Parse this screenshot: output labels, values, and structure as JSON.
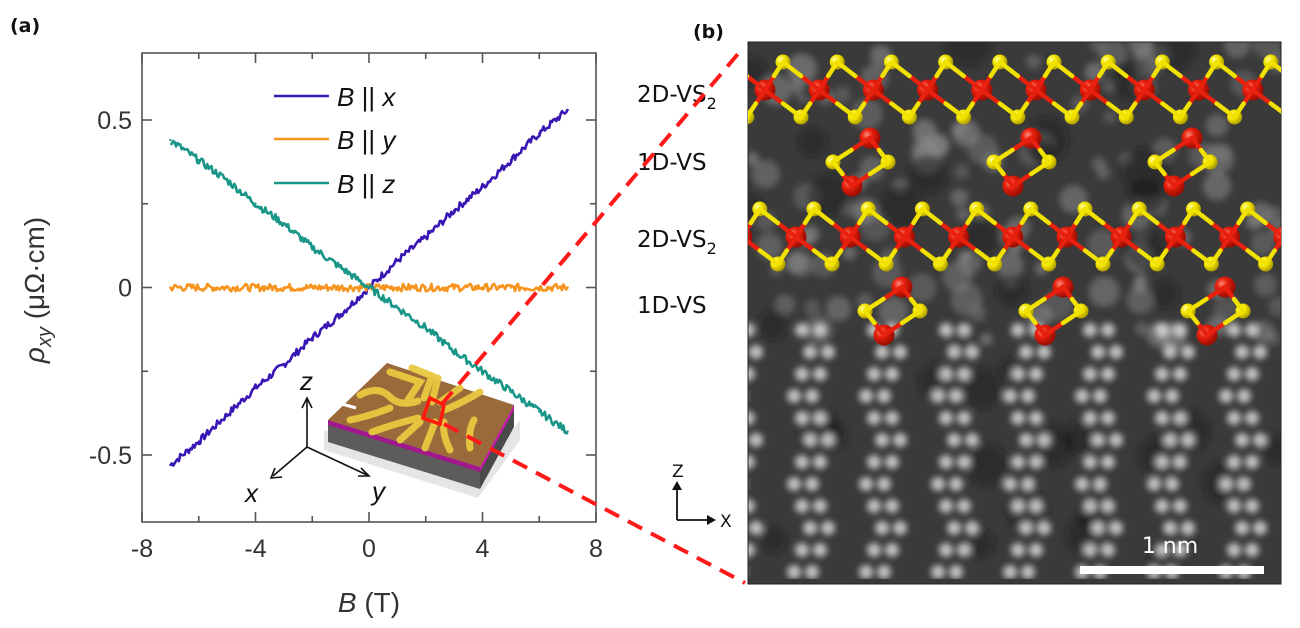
{
  "figure": {
    "panel_a_label": "(a)",
    "panel_b_label": "(b)"
  },
  "chart_data": {
    "type": "line",
    "title": "",
    "xlabel_var": "B",
    "xlabel_unit": " (T)",
    "ylabel_var": "ρ",
    "ylabel_sub": "xy",
    "ylabel_unit": " (μΩ·cm)",
    "xlim": [
      -8,
      8
    ],
    "ylim": [
      -0.7,
      0.7
    ],
    "x_ticks": [
      -8,
      -4,
      0,
      4,
      8
    ],
    "x_tick_labels": [
      "-8",
      "-4",
      "0",
      "4",
      "8"
    ],
    "x_minor_ticks": [
      -6,
      -2,
      2,
      6
    ],
    "y_ticks": [
      0.5,
      0,
      -0.5
    ],
    "y_tick_labels": [
      "0.5",
      "0",
      "-0.5"
    ],
    "y_minor_ticks": [
      0.25,
      -0.25
    ],
    "grid": false,
    "legend_position": "top-center",
    "series": [
      {
        "name": "B || x",
        "legend_var": "B",
        "legend_sep": " || ",
        "legend_axis": "x",
        "color": "#3a16b4",
        "x": [
          -7,
          -6,
          -5,
          -4,
          -3,
          -2,
          -1,
          0,
          1,
          2,
          3,
          4,
          5,
          6,
          7
        ],
        "y": [
          -0.53,
          -0.46,
          -0.38,
          -0.3,
          -0.23,
          -0.15,
          -0.08,
          0.0,
          0.08,
          0.15,
          0.23,
          0.3,
          0.38,
          0.46,
          0.53
        ]
      },
      {
        "name": "B || y",
        "legend_var": "B",
        "legend_sep": " || ",
        "legend_axis": "y",
        "color": "#f7941d",
        "x": [
          -7,
          -6,
          -5,
          -4,
          -3,
          -2,
          -1,
          0,
          1,
          2,
          3,
          4,
          5,
          6,
          7
        ],
        "y": [
          0.0,
          0.0,
          0.0,
          0.0,
          0.0,
          0.0,
          0.0,
          0.0,
          0.0,
          0.0,
          0.0,
          0.0,
          0.0,
          0.0,
          0.0
        ]
      },
      {
        "name": "B || z",
        "legend_var": "B",
        "legend_sep": " || ",
        "legend_axis": "z",
        "color": "#1a9688",
        "x": [
          -7,
          -6,
          -5,
          -4,
          -3,
          -2,
          -1,
          0,
          1,
          2,
          3,
          4,
          5,
          6,
          7
        ],
        "y": [
          0.44,
          0.38,
          0.32,
          0.25,
          0.19,
          0.12,
          0.06,
          0.0,
          -0.06,
          -0.12,
          -0.19,
          -0.25,
          -0.31,
          -0.37,
          -0.43
        ]
      }
    ]
  },
  "inset": {
    "axis_x": "x",
    "axis_y": "y",
    "axis_z": "z"
  },
  "panel_b": {
    "layer_labels": [
      {
        "text": "2D-VS",
        "sub": "2"
      },
      {
        "text": "1D-VS",
        "sub": ""
      },
      {
        "text": "2D-VS",
        "sub": "2"
      },
      {
        "text": "1D-VS",
        "sub": ""
      }
    ],
    "compass_z": "Z",
    "compass_x": "X",
    "scale_bar_label": "1 nm",
    "atom_colors": {
      "vanadium": "#e01a0a",
      "sulfur": "#f2e200"
    }
  }
}
